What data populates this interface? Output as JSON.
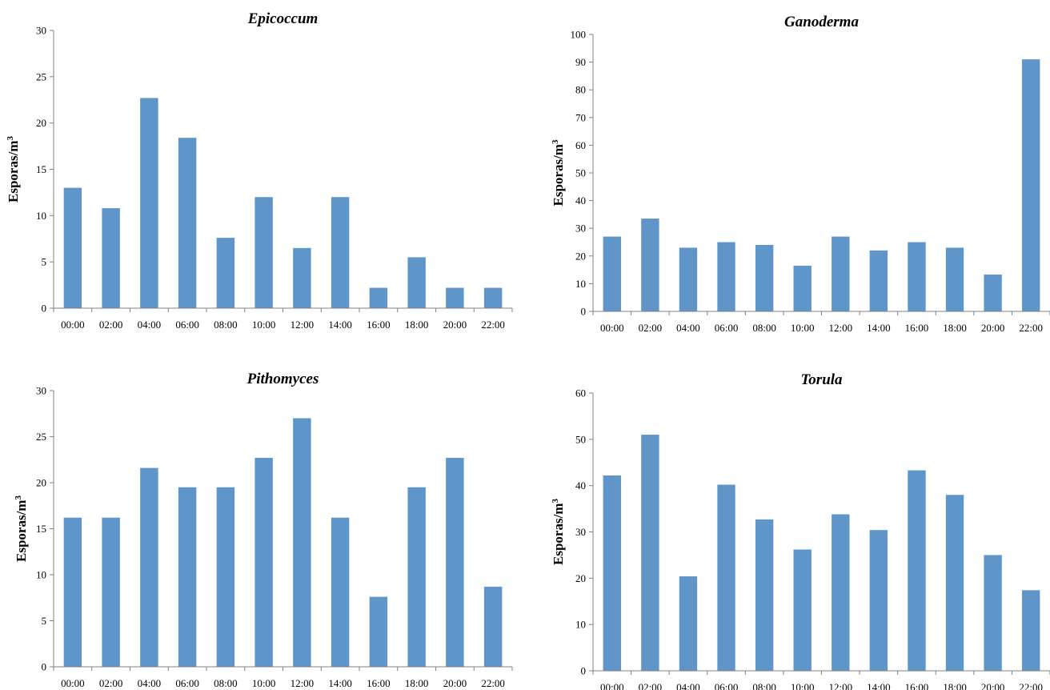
{
  "chart_data": [
    {
      "type": "bar",
      "title": "Epicoccum",
      "ylabel": "Esporas/m",
      "ylabel_superscript": "3",
      "categories": [
        "00:00",
        "02:00",
        "04:00",
        "06:00",
        "08:00",
        "10:00",
        "12:00",
        "14:00",
        "16:00",
        "18:00",
        "20:00",
        "22:00"
      ],
      "values": [
        13,
        10.8,
        22.7,
        18.4,
        7.6,
        12,
        6.5,
        12,
        2.2,
        5.5,
        2.2,
        2.2
      ],
      "ylim": [
        0,
        30
      ],
      "yticks": [
        0,
        5,
        10,
        15,
        20,
        25,
        30
      ],
      "bar_color": "#5f95c9",
      "grid": false
    },
    {
      "type": "bar",
      "title": "Ganoderma",
      "ylabel": "Esporas/m",
      "ylabel_superscript": "3",
      "categories": [
        "00:00",
        "02:00",
        "04:00",
        "06:00",
        "08:00",
        "10:00",
        "12:00",
        "14:00",
        "16:00",
        "18:00",
        "20:00",
        "22:00"
      ],
      "values": [
        27,
        33.5,
        23,
        25,
        24,
        16.5,
        27,
        22,
        25,
        23,
        13.3,
        91
      ],
      "ylim": [
        0,
        100
      ],
      "yticks": [
        0,
        10,
        20,
        30,
        40,
        50,
        60,
        70,
        80,
        90,
        100
      ],
      "bar_color": "#5f95c9",
      "grid": false
    },
    {
      "type": "bar",
      "title": "Pithomyces",
      "ylabel": "Esporas/m",
      "ylabel_superscript": "3",
      "categories": [
        "00:00",
        "02:00",
        "04:00",
        "06:00",
        "08:00",
        "10:00",
        "12:00",
        "14:00",
        "16:00",
        "18:00",
        "20:00",
        "22:00"
      ],
      "values": [
        16.2,
        16.2,
        21.6,
        19.5,
        19.5,
        22.7,
        27,
        16.2,
        7.6,
        19.5,
        22.7,
        8.7
      ],
      "ylim": [
        0,
        30
      ],
      "yticks": [
        0,
        5,
        10,
        15,
        20,
        25,
        30
      ],
      "bar_color": "#5f95c9",
      "grid": false
    },
    {
      "type": "bar",
      "title": "Torula",
      "ylabel": "Esporas/m",
      "ylabel_superscript": "3",
      "categories": [
        "00:00",
        "02:00",
        "04:00",
        "06:00",
        "08:00",
        "10:00",
        "12:00",
        "14:00",
        "16:00",
        "18:00",
        "20:00",
        "22:00"
      ],
      "values": [
        42.2,
        51,
        20.4,
        40.2,
        32.7,
        26.2,
        33.8,
        30.4,
        43.3,
        38,
        25,
        17.4
      ],
      "ylim": [
        0,
        60
      ],
      "yticks": [
        0,
        10,
        20,
        30,
        40,
        50,
        60
      ],
      "bar_color": "#5f95c9",
      "grid": false
    }
  ]
}
